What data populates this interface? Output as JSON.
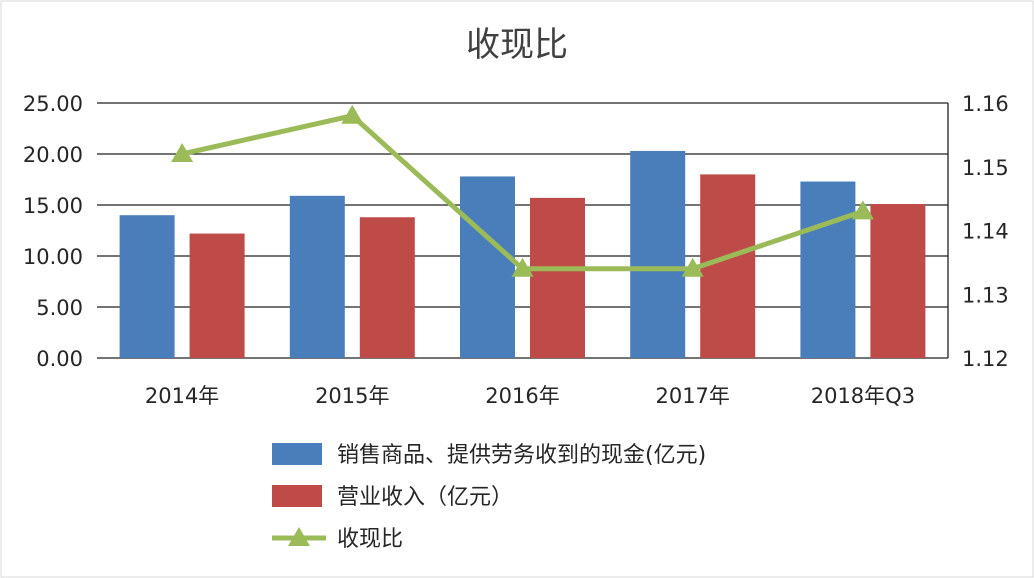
{
  "chart_data": {
    "type": "bar",
    "title": "收现比",
    "categories": [
      "2014年",
      "2015年",
      "2016年",
      "2017年",
      "2018年Q3"
    ],
    "series": [
      {
        "name": "销售商品、提供劳务收到的现金(亿元)",
        "type": "bar",
        "axis": "left",
        "color": "#4a7ebb",
        "values": [
          14.0,
          15.9,
          17.8,
          20.3,
          17.3
        ]
      },
      {
        "name": "营业收入（亿元）",
        "type": "bar",
        "axis": "left",
        "color": "#be4b48",
        "values": [
          12.2,
          13.8,
          15.7,
          18.0,
          15.1
        ]
      },
      {
        "name": "收现比",
        "type": "line",
        "axis": "right",
        "color": "#9bbb59",
        "marker": "triangle",
        "values": [
          1.152,
          1.158,
          1.134,
          1.134,
          1.143
        ]
      }
    ],
    "left_axis": {
      "ylim": [
        0,
        25
      ],
      "ticks": [
        "0.00",
        "5.00",
        "10.00",
        "15.00",
        "20.00",
        "25.00"
      ]
    },
    "right_axis": {
      "ylim": [
        1.12,
        1.16
      ],
      "ticks": [
        "1.12",
        "1.13",
        "1.14",
        "1.15",
        "1.16"
      ]
    },
    "grid": true,
    "legend_position": "bottom"
  }
}
